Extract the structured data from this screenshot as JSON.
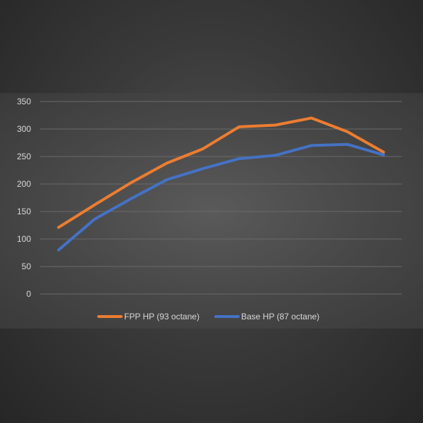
{
  "chart_data": {
    "type": "line",
    "title": "",
    "xlabel": "",
    "ylabel": "",
    "ylim": [
      0,
      350
    ],
    "yticks": [
      0,
      50,
      100,
      150,
      200,
      250,
      300,
      350
    ],
    "x": [
      1,
      2,
      3,
      4,
      5,
      6,
      7,
      8,
      9,
      10
    ],
    "grid": true,
    "legend_position": "bottom",
    "series": [
      {
        "name": "FPP HP (93 octane)",
        "color": "#ed7d31",
        "values": [
          121,
          162,
          202,
          238,
          264,
          304,
          307,
          320,
          295,
          258
        ]
      },
      {
        "name": "Base HP (87 octane)",
        "color": "#4472c4",
        "values": [
          80,
          136,
          173,
          208,
          228,
          246,
          252,
          270,
          272,
          253
        ]
      }
    ]
  }
}
